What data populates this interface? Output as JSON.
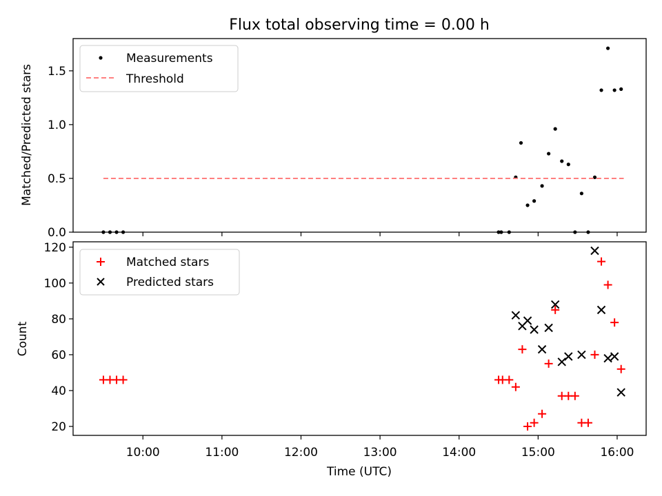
{
  "title": "Flux total observing time = 0.00 h",
  "colors": {
    "measurement": "#000000",
    "threshold": "#ff7f7f",
    "matched": "#ff0000",
    "predicted": "#000000"
  },
  "chart_data": [
    {
      "type": "scatter",
      "panel": "top",
      "xlabel": "",
      "ylabel": "Matched/Predicted stars",
      "ylim": [
        0,
        1.8
      ],
      "yticks": [
        0.0,
        0.5,
        1.0,
        1.5
      ],
      "ytick_labels": [
        "0.0",
        "0.5",
        "1.0",
        "1.5"
      ],
      "legend": {
        "placement": "upper-left",
        "entries": [
          "Measurements",
          "Threshold"
        ]
      },
      "series": [
        {
          "name": "Measurements",
          "marker": "dot",
          "points": [
            [
              "09:30",
              0.0
            ],
            [
              "09:35",
              0.0
            ],
            [
              "09:40",
              0.0
            ],
            [
              "09:45",
              0.0
            ],
            [
              "14:30",
              0.0
            ],
            [
              "14:32",
              0.0
            ],
            [
              "14:38",
              0.0
            ],
            [
              "14:43",
              0.51
            ],
            [
              "14:47",
              0.83
            ],
            [
              "14:52",
              0.25
            ],
            [
              "14:57",
              0.29
            ],
            [
              "15:03",
              0.43
            ],
            [
              "15:08",
              0.73
            ],
            [
              "15:13",
              0.96
            ],
            [
              "15:18",
              0.66
            ],
            [
              "15:23",
              0.63
            ],
            [
              "15:28",
              0.0
            ],
            [
              "15:33",
              0.36
            ],
            [
              "15:38",
              0.0
            ],
            [
              "15:43",
              0.51
            ],
            [
              "15:48",
              1.32
            ],
            [
              "15:53",
              1.71
            ],
            [
              "15:58",
              1.32
            ],
            [
              "16:03",
              1.33
            ]
          ]
        },
        {
          "name": "Threshold",
          "line": "dashed",
          "points": [
            [
              "09:30",
              0.5
            ],
            [
              "16:05",
              0.5
            ]
          ]
        }
      ]
    },
    {
      "type": "scatter",
      "panel": "bottom",
      "xlabel": "Time (UTC)",
      "ylabel": "Count",
      "xlim": [
        "09:07",
        "16:22"
      ],
      "ylim": [
        15,
        123
      ],
      "xticks": [
        "10:00",
        "11:00",
        "12:00",
        "13:00",
        "14:00",
        "15:00",
        "16:00"
      ],
      "yticks": [
        20,
        40,
        60,
        80,
        100,
        120
      ],
      "ytick_labels": [
        "20",
        "40",
        "60",
        "80",
        "100",
        "120"
      ],
      "legend": {
        "placement": "upper-left",
        "entries": [
          "Matched stars",
          "Predicted stars"
        ]
      },
      "series": [
        {
          "name": "Matched stars",
          "marker": "plus",
          "points": [
            [
              "09:30",
              46
            ],
            [
              "09:35",
              46
            ],
            [
              "09:40",
              46
            ],
            [
              "09:45",
              46
            ],
            [
              "14:30",
              46
            ],
            [
              "14:33",
              46
            ],
            [
              "14:38",
              46
            ],
            [
              "14:43",
              42
            ],
            [
              "14:48",
              63
            ],
            [
              "14:52",
              20
            ],
            [
              "14:57",
              22
            ],
            [
              "15:03",
              27
            ],
            [
              "15:08",
              55
            ],
            [
              "15:13",
              85
            ],
            [
              "15:18",
              37
            ],
            [
              "15:23",
              37
            ],
            [
              "15:28",
              37
            ],
            [
              "15:33",
              22
            ],
            [
              "15:38",
              22
            ],
            [
              "15:43",
              60
            ],
            [
              "15:48",
              112
            ],
            [
              "15:53",
              99
            ],
            [
              "15:58",
              78
            ],
            [
              "16:03",
              52
            ]
          ]
        },
        {
          "name": "Predicted stars",
          "marker": "x",
          "points": [
            [
              "14:43",
              82
            ],
            [
              "14:48",
              76
            ],
            [
              "14:52",
              79
            ],
            [
              "14:57",
              74
            ],
            [
              "15:03",
              63
            ],
            [
              "15:08",
              75
            ],
            [
              "15:13",
              88
            ],
            [
              "15:18",
              56
            ],
            [
              "15:23",
              59
            ],
            [
              "15:33",
              60
            ],
            [
              "15:43",
              118
            ],
            [
              "15:48",
              85
            ],
            [
              "15:53",
              58
            ],
            [
              "15:58",
              59
            ],
            [
              "16:03",
              39
            ]
          ]
        }
      ]
    }
  ]
}
